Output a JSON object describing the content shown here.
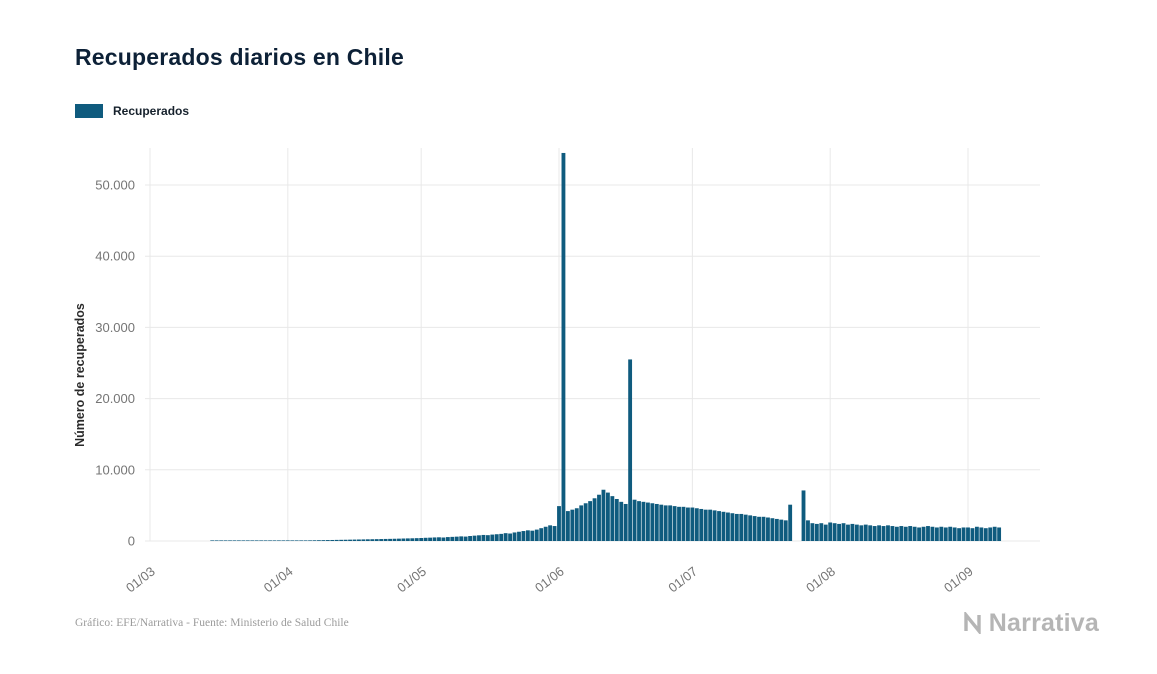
{
  "page": {
    "footer_credit": "Gráfico: EFE/Narrativa - Fuente: Ministerio de Salud Chile",
    "brand": "Narrativa"
  },
  "colors": {
    "bar": "#0F5B7E",
    "title_text": "#0d2137",
    "grid": "#e8e8e8",
    "tick_text": "#757575",
    "brand_gray": "#b5b5b5"
  },
  "chart_data": {
    "type": "bar",
    "title": "Recuperados diarios en Chile",
    "xlabel": "",
    "ylabel": "Número de recuperados",
    "ylim": [
      0,
      55000
    ],
    "yticks": [
      0,
      10000,
      20000,
      30000,
      40000,
      50000
    ],
    "ytick_labels": [
      "0",
      "10.000",
      "20.000",
      "30.000",
      "40.000",
      "50.000"
    ],
    "xtick_labels": [
      "01/03",
      "01/04",
      "01/05",
      "01/06",
      "01/07",
      "01/08",
      "01/09"
    ],
    "xtick_day_index": [
      0,
      31,
      61,
      92,
      122,
      153,
      184
    ],
    "x_unit": "day",
    "x_start_label": "01/03",
    "grid": true,
    "legend_position": "top-left",
    "series": [
      {
        "name": "Recuperados",
        "color": "#0F5B7E",
        "values": [
          0,
          0,
          0,
          0,
          0,
          0,
          0,
          0,
          0,
          0,
          0,
          0,
          0,
          0,
          1,
          2,
          3,
          4,
          5,
          6,
          8,
          10,
          12,
          15,
          18,
          22,
          26,
          30,
          36,
          43,
          50,
          55,
          60,
          68,
          75,
          82,
          90,
          100,
          110,
          120,
          130,
          142,
          155,
          165,
          175,
          188,
          200,
          212,
          225,
          238,
          250,
          262,
          275,
          288,
          300,
          315,
          330,
          350,
          365,
          380,
          400,
          420,
          450,
          470,
          500,
          520,
          490,
          550,
          580,
          610,
          650,
          620,
          700,
          750,
          800,
          850,
          820,
          900,
          950,
          1000,
          1100,
          1050,
          1200,
          1300,
          1400,
          1500,
          1450,
          1600,
          1800,
          2000,
          2200,
          2100,
          4900,
          54500,
          4200,
          4400,
          4600,
          5000,
          5300,
          5600,
          6000,
          6500,
          7200,
          6800,
          6300,
          5900,
          5500,
          5200,
          25500,
          5800,
          5600,
          5500,
          5400,
          5300,
          5200,
          5100,
          5000,
          5000,
          4900,
          4800,
          4800,
          4700,
          4700,
          4600,
          4500,
          4400,
          4400,
          4300,
          4200,
          4100,
          4000,
          3900,
          3800,
          3800,
          3700,
          3600,
          3500,
          3400,
          3400,
          3300,
          3200,
          3100,
          3000,
          2900,
          5100,
          0,
          0,
          7100,
          2900,
          2500,
          2400,
          2500,
          2300,
          2600,
          2500,
          2400,
          2500,
          2300,
          2400,
          2300,
          2200,
          2300,
          2200,
          2100,
          2200,
          2100,
          2200,
          2100,
          2000,
          2100,
          2000,
          2100,
          2000,
          1900,
          2000,
          2100,
          2000,
          1900,
          2000,
          1900,
          2000,
          1900,
          1800,
          1900,
          1900,
          1800,
          2000,
          1900,
          1800,
          1900,
          2000,
          1900
        ]
      }
    ]
  }
}
